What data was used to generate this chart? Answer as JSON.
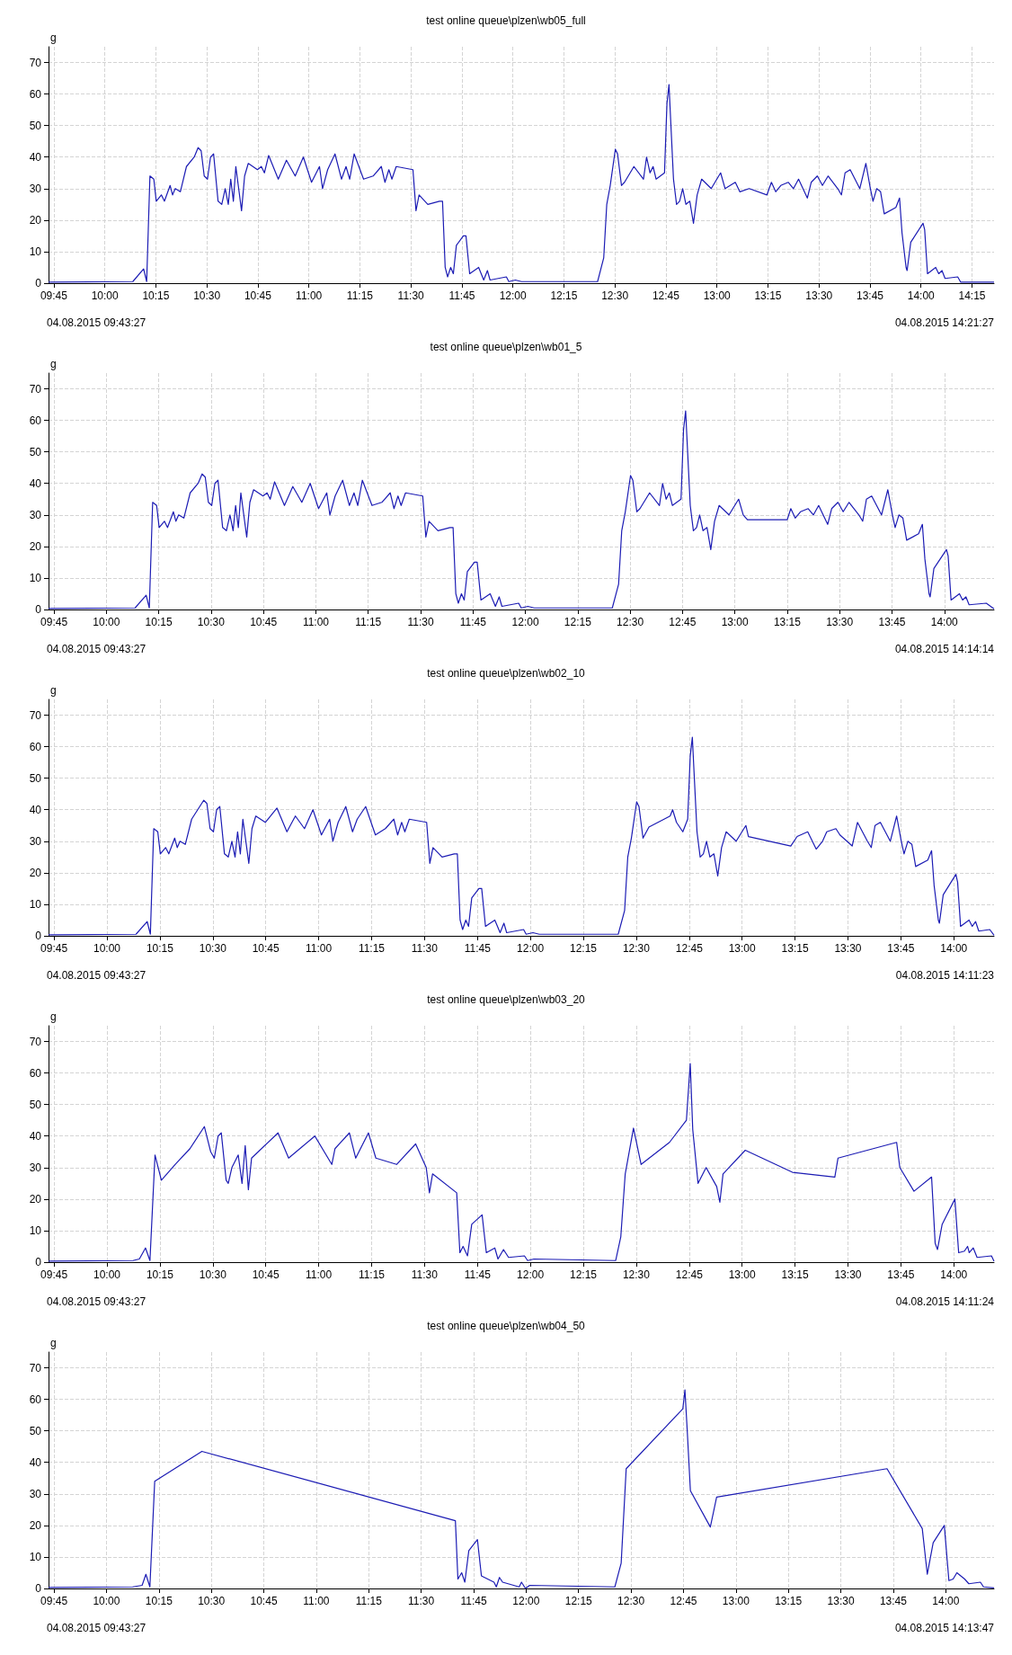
{
  "chart_data": [
    {
      "type": "line",
      "title": "test online queue\\plzen\\wb05_full",
      "ylabel": "g",
      "color": "#1c1cb4",
      "grid": true,
      "xlim": [
        9.724,
        14.358
      ],
      "ylim": [
        0,
        75
      ],
      "yticks": [
        0,
        10,
        20,
        30,
        40,
        50,
        60,
        70
      ],
      "xticks": [
        {
          "value": 9.75,
          "label": "09:45"
        },
        {
          "value": 10,
          "label": "10:00"
        },
        {
          "value": 10.25,
          "label": "10:15"
        },
        {
          "value": 10.5,
          "label": "10:30"
        },
        {
          "value": 10.75,
          "label": "10:45"
        },
        {
          "value": 11,
          "label": "11:00"
        },
        {
          "value": 11.25,
          "label": "11:15"
        },
        {
          "value": 11.5,
          "label": "11:30"
        },
        {
          "value": 11.75,
          "label": "11:45"
        },
        {
          "value": 12,
          "label": "12:00"
        },
        {
          "value": 12.25,
          "label": "12:15"
        },
        {
          "value": 12.5,
          "label": "12:30"
        },
        {
          "value": 12.75,
          "label": "12:45"
        },
        {
          "value": 13,
          "label": "13:00"
        },
        {
          "value": 13.25,
          "label": "13:15"
        },
        {
          "value": 13.5,
          "label": "13:30"
        },
        {
          "value": 13.75,
          "label": "13:45"
        },
        {
          "value": 14,
          "label": "14:00"
        },
        {
          "value": 14.25,
          "label": "14:15"
        }
      ],
      "annotations": [
        "04.08.2015 09:43:27",
        "04.08.2015 14:21:27"
      ],
      "x": [
        9.724,
        10.137,
        10.19,
        10.205,
        10.221,
        10.24,
        10.252,
        10.277,
        10.292,
        10.32,
        10.332,
        10.345,
        10.37,
        10.4,
        10.438,
        10.457,
        10.472,
        10.487,
        10.503,
        10.518,
        10.533,
        10.555,
        10.573,
        10.59,
        10.605,
        10.617,
        10.63,
        10.642,
        10.67,
        10.685,
        10.703,
        10.748,
        10.767,
        10.782,
        10.803,
        10.85,
        10.89,
        10.933,
        10.973,
        11.013,
        11.052,
        11.067,
        11.092,
        11.128,
        11.16,
        11.182,
        11.2,
        11.222,
        11.268,
        11.315,
        11.355,
        11.373,
        11.392,
        11.407,
        11.428,
        11.51,
        11.525,
        11.54,
        11.583,
        11.64,
        11.655,
        11.668,
        11.68,
        11.695,
        11.708,
        11.723,
        11.757,
        11.77,
        11.788,
        11.832,
        11.857,
        11.875,
        11.888,
        11.968,
        11.98,
        12.012,
        12.042,
        12.415,
        12.445,
        12.46,
        12.477,
        12.502,
        12.513,
        12.532,
        12.547,
        12.593,
        12.64,
        12.655,
        12.672,
        12.687,
        12.702,
        12.743,
        12.755,
        12.765,
        12.773,
        12.787,
        12.802,
        12.817,
        12.832,
        12.848,
        12.867,
        12.885,
        12.903,
        12.925,
        12.972,
        13.018,
        13.04,
        13.09,
        13.112,
        13.158,
        13.245,
        13.267,
        13.288,
        13.313,
        13.35,
        13.375,
        13.4,
        13.443,
        13.462,
        13.492,
        13.517,
        13.545,
        13.592,
        13.61,
        13.628,
        13.653,
        13.7,
        13.73,
        13.752,
        13.765,
        13.783,
        13.802,
        13.82,
        13.877,
        13.895,
        13.907,
        13.927,
        13.932,
        13.95,
        14.01,
        14.018,
        14.032,
        14.072,
        14.087,
        14.103,
        14.118,
        14.18,
        14.195,
        14.358
      ],
      "values": [
        0.3,
        0.5,
        4.5,
        0.5,
        34,
        33,
        26,
        28,
        26,
        31,
        28,
        30,
        29,
        37,
        40,
        43,
        42,
        34,
        33,
        40,
        41,
        26,
        25,
        30,
        25,
        33,
        26,
        37,
        23,
        34,
        38,
        36,
        37,
        35,
        40.5,
        33,
        39,
        34,
        40,
        32,
        37,
        30,
        36,
        41,
        33,
        37,
        33,
        41,
        33,
        34,
        37,
        32,
        36,
        33,
        37,
        36,
        23,
        28,
        25,
        26,
        26,
        5,
        2,
        5,
        3,
        12,
        15,
        15,
        3,
        5,
        1,
        4,
        1,
        2,
        0.5,
        1,
        0.5,
        0.5,
        8,
        25,
        31,
        42.5,
        41,
        31,
        32,
        37,
        33,
        40,
        35,
        37,
        33,
        35,
        57,
        63,
        52,
        33,
        25,
        26,
        30,
        25,
        26,
        19,
        28,
        33,
        30,
        35,
        30,
        32,
        29,
        30,
        28,
        32,
        29,
        31,
        32,
        30,
        33,
        27,
        32,
        34,
        31,
        34,
        30,
        28,
        35,
        36,
        30,
        38,
        30,
        26,
        30,
        29,
        22,
        24,
        27,
        16,
        5,
        4,
        13,
        19,
        17,
        3,
        5,
        3,
        4,
        1.5,
        2,
        0.3,
        0.3
      ]
    },
    {
      "type": "line",
      "title": "test online queue\\plzen\\wb01_5",
      "ylabel": "g",
      "color": "#1c1cb4",
      "grid": true,
      "xlim": [
        9.724,
        14.237
      ],
      "ylim": [
        0,
        75
      ],
      "yticks": [
        0,
        10,
        20,
        30,
        40,
        50,
        60,
        70
      ],
      "xticks": [
        {
          "value": 9.75,
          "label": "09:45"
        },
        {
          "value": 10,
          "label": "10:00"
        },
        {
          "value": 10.25,
          "label": "10:15"
        },
        {
          "value": 10.5,
          "label": "10:30"
        },
        {
          "value": 10.75,
          "label": "10:45"
        },
        {
          "value": 11,
          "label": "11:00"
        },
        {
          "value": 11.25,
          "label": "11:15"
        },
        {
          "value": 11.5,
          "label": "11:30"
        },
        {
          "value": 11.75,
          "label": "11:45"
        },
        {
          "value": 12,
          "label": "12:00"
        },
        {
          "value": 12.25,
          "label": "12:15"
        },
        {
          "value": 12.5,
          "label": "12:30"
        },
        {
          "value": 12.75,
          "label": "12:45"
        },
        {
          "value": 13,
          "label": "13:00"
        },
        {
          "value": 13.25,
          "label": "13:15"
        },
        {
          "value": 13.5,
          "label": "13:30"
        },
        {
          "value": 13.75,
          "label": "13:45"
        },
        {
          "value": 14,
          "label": "14:00"
        }
      ],
      "annotations": [
        "04.08.2015 09:43:27",
        "04.08.2015 14:14:14"
      ],
      "x": [
        9.724,
        10.137,
        10.19,
        10.205,
        10.221,
        10.24,
        10.252,
        10.277,
        10.292,
        10.32,
        10.332,
        10.345,
        10.37,
        10.4,
        10.438,
        10.457,
        10.472,
        10.487,
        10.503,
        10.518,
        10.533,
        10.555,
        10.573,
        10.59,
        10.605,
        10.617,
        10.63,
        10.642,
        10.67,
        10.685,
        10.703,
        10.748,
        10.767,
        10.782,
        10.803,
        10.85,
        10.89,
        10.933,
        10.973,
        11.013,
        11.052,
        11.067,
        11.092,
        11.128,
        11.16,
        11.182,
        11.2,
        11.222,
        11.268,
        11.315,
        11.355,
        11.373,
        11.392,
        11.407,
        11.428,
        11.51,
        11.525,
        11.54,
        11.583,
        11.64,
        11.655,
        11.668,
        11.68,
        11.695,
        11.708,
        11.723,
        11.757,
        11.77,
        11.788,
        11.832,
        11.857,
        11.875,
        11.888,
        11.968,
        11.98,
        12.012,
        12.042,
        12.415,
        12.445,
        12.46,
        12.477,
        12.502,
        12.513,
        12.532,
        12.547,
        12.593,
        12.64,
        12.655,
        12.672,
        12.687,
        12.702,
        12.743,
        12.755,
        12.765,
        12.773,
        12.787,
        12.802,
        12.817,
        12.832,
        12.848,
        12.867,
        12.885,
        12.903,
        12.925,
        12.972,
        13.018,
        13.04,
        13.06,
        13.25,
        13.267,
        13.288,
        13.313,
        13.35,
        13.375,
        13.4,
        13.443,
        13.462,
        13.492,
        13.517,
        13.545,
        13.592,
        13.61,
        13.628,
        13.653,
        13.7,
        13.73,
        13.752,
        13.765,
        13.783,
        13.802,
        13.82,
        13.877,
        13.895,
        13.907,
        13.927,
        13.932,
        13.95,
        14.01,
        14.018,
        14.032,
        14.072,
        14.087,
        14.103,
        14.118,
        14.2,
        14.237
      ],
      "values": [
        0.3,
        0.5,
        4.5,
        0.5,
        34,
        33,
        26,
        28,
        26,
        31,
        28,
        30,
        29,
        37,
        40,
        43,
        42,
        34,
        33,
        40,
        41,
        26,
        25,
        30,
        25,
        33,
        26,
        37,
        23,
        34,
        38,
        36,
        37,
        35,
        40.5,
        33,
        39,
        34,
        40,
        32,
        37,
        30,
        36,
        41,
        33,
        37,
        33,
        41,
        33,
        34,
        37,
        32,
        36,
        33,
        37,
        36,
        23,
        28,
        25,
        26,
        26,
        5,
        2,
        5,
        3,
        12,
        15,
        15,
        3,
        5,
        1,
        4,
        1,
        2,
        0.5,
        1,
        0.5,
        0.5,
        8,
        25,
        31,
        42.5,
        41,
        31,
        32,
        37,
        33,
        40,
        35,
        37,
        33,
        35,
        57,
        63,
        52,
        33,
        25,
        26,
        30,
        25,
        26,
        19,
        28,
        33,
        30,
        35,
        30,
        28.5,
        28.5,
        32,
        29,
        31,
        32,
        30,
        33,
        27,
        32,
        34,
        31,
        34,
        30,
        28,
        35,
        36,
        30,
        38,
        30,
        26,
        30,
        29,
        22,
        24,
        27,
        16,
        5,
        4,
        13,
        19,
        17,
        3,
        5,
        3,
        4,
        1.5,
        2,
        0.2
      ]
    },
    {
      "type": "line",
      "title": "test online queue\\plzen\\wb02_10",
      "ylabel": "g",
      "color": "#1c1cb4",
      "grid": true,
      "xlim": [
        9.724,
        14.19
      ],
      "ylim": [
        0,
        75
      ],
      "yticks": [
        0,
        10,
        20,
        30,
        40,
        50,
        60,
        70
      ],
      "xticks": [
        {
          "value": 9.75,
          "label": "09:45"
        },
        {
          "value": 10,
          "label": "10:00"
        },
        {
          "value": 10.25,
          "label": "10:15"
        },
        {
          "value": 10.5,
          "label": "10:30"
        },
        {
          "value": 10.75,
          "label": "10:45"
        },
        {
          "value": 11,
          "label": "11:00"
        },
        {
          "value": 11.25,
          "label": "11:15"
        },
        {
          "value": 11.5,
          "label": "11:30"
        },
        {
          "value": 11.75,
          "label": "11:45"
        },
        {
          "value": 12,
          "label": "12:00"
        },
        {
          "value": 12.25,
          "label": "12:15"
        },
        {
          "value": 12.5,
          "label": "12:30"
        },
        {
          "value": 12.75,
          "label": "12:45"
        },
        {
          "value": 13,
          "label": "13:00"
        },
        {
          "value": 13.25,
          "label": "13:15"
        },
        {
          "value": 13.5,
          "label": "13:30"
        },
        {
          "value": 13.75,
          "label": "13:45"
        },
        {
          "value": 14,
          "label": "14:00"
        }
      ],
      "annotations": [
        "04.08.2015 09:43:27",
        "04.08.2015 14:11:23"
      ],
      "x": [
        9.724,
        10.137,
        10.19,
        10.205,
        10.221,
        10.24,
        10.252,
        10.277,
        10.292,
        10.32,
        10.332,
        10.345,
        10.37,
        10.4,
        10.457,
        10.472,
        10.487,
        10.503,
        10.518,
        10.533,
        10.555,
        10.573,
        10.59,
        10.605,
        10.617,
        10.63,
        10.642,
        10.67,
        10.685,
        10.703,
        10.748,
        10.803,
        10.85,
        10.89,
        10.933,
        10.973,
        11.013,
        11.052,
        11.067,
        11.092,
        11.128,
        11.16,
        11.182,
        11.222,
        11.268,
        11.315,
        11.355,
        11.373,
        11.392,
        11.407,
        11.428,
        11.51,
        11.525,
        11.54,
        11.583,
        11.64,
        11.655,
        11.668,
        11.68,
        11.695,
        11.708,
        11.723,
        11.757,
        11.77,
        11.788,
        11.832,
        11.857,
        11.875,
        11.888,
        11.968,
        11.98,
        12.012,
        12.042,
        12.415,
        12.445,
        12.46,
        12.477,
        12.502,
        12.513,
        12.532,
        12.56,
        12.66,
        12.672,
        12.69,
        12.72,
        12.743,
        12.755,
        12.765,
        12.773,
        12.787,
        12.802,
        12.817,
        12.832,
        12.848,
        12.867,
        12.885,
        12.903,
        12.925,
        12.972,
        13.018,
        13.03,
        13.23,
        13.26,
        13.31,
        13.35,
        13.38,
        13.4,
        13.443,
        13.462,
        13.52,
        13.545,
        13.592,
        13.61,
        13.628,
        13.653,
        13.7,
        13.73,
        13.752,
        13.765,
        13.783,
        13.802,
        13.82,
        13.877,
        13.895,
        13.907,
        13.927,
        13.932,
        13.95,
        14.01,
        14.018,
        14.032,
        14.072,
        14.087,
        14.103,
        14.118,
        14.17,
        14.19
      ],
      "values": [
        0.3,
        0.5,
        4.5,
        0.5,
        34,
        33,
        26,
        28,
        26,
        31,
        28,
        30,
        29,
        37,
        43,
        42,
        34,
        33,
        40,
        41,
        26,
        25,
        30,
        25,
        33,
        26,
        37,
        23,
        34,
        38,
        36,
        40.5,
        33,
        38,
        34,
        40,
        32,
        37,
        30,
        36,
        41,
        33,
        37,
        41,
        32,
        34,
        37,
        32,
        36,
        33,
        37,
        36,
        23,
        28,
        25,
        26,
        26,
        5,
        2,
        5,
        3,
        12,
        15,
        15,
        3,
        5,
        1,
        4,
        1,
        2,
        0.5,
        1,
        0.5,
        0.5,
        8,
        25,
        31,
        42.5,
        41,
        31,
        34.5,
        38,
        40,
        36,
        33,
        37,
        57,
        63,
        52,
        33,
        25,
        26,
        30,
        25,
        26,
        19,
        28,
        33,
        30,
        35,
        31.5,
        28.5,
        31.5,
        33,
        27.5,
        30,
        33,
        34,
        32,
        28.5,
        36,
        30,
        28,
        35,
        36,
        30,
        38,
        30,
        26,
        30,
        29,
        22,
        24,
        27,
        16,
        5,
        4,
        13,
        19.5,
        17,
        3,
        5,
        3,
        4.5,
        1.5,
        2,
        0.2
      ]
    },
    {
      "type": "line",
      "title": "test online queue\\plzen\\wb03_20",
      "ylabel": "g",
      "color": "#1c1cb4",
      "grid": true,
      "xlim": [
        9.724,
        14.19
      ],
      "ylim": [
        0,
        75
      ],
      "yticks": [
        0,
        10,
        20,
        30,
        40,
        50,
        60,
        70
      ],
      "xticks": [
        {
          "value": 9.75,
          "label": "09:45"
        },
        {
          "value": 10,
          "label": "10:00"
        },
        {
          "value": 10.25,
          "label": "10:15"
        },
        {
          "value": 10.5,
          "label": "10:30"
        },
        {
          "value": 10.75,
          "label": "10:45"
        },
        {
          "value": 11,
          "label": "11:00"
        },
        {
          "value": 11.25,
          "label": "11:15"
        },
        {
          "value": 11.5,
          "label": "11:30"
        },
        {
          "value": 11.75,
          "label": "11:45"
        },
        {
          "value": 12,
          "label": "12:00"
        },
        {
          "value": 12.25,
          "label": "12:15"
        },
        {
          "value": 12.5,
          "label": "12:30"
        },
        {
          "value": 12.75,
          "label": "12:45"
        },
        {
          "value": 13,
          "label": "13:00"
        },
        {
          "value": 13.25,
          "label": "13:15"
        },
        {
          "value": 13.5,
          "label": "13:30"
        },
        {
          "value": 13.75,
          "label": "13:45"
        },
        {
          "value": 14,
          "label": "14:00"
        }
      ],
      "annotations": [
        "04.08.2015 09:43:27",
        "04.08.2015 14:11:24"
      ],
      "x": [
        9.724,
        10.123,
        10.153,
        10.182,
        10.203,
        10.227,
        10.257,
        10.322,
        10.392,
        10.46,
        10.49,
        10.507,
        10.525,
        10.54,
        10.563,
        10.573,
        10.59,
        10.62,
        10.638,
        10.653,
        10.668,
        10.683,
        10.808,
        10.858,
        10.982,
        11.062,
        11.077,
        11.145,
        11.175,
        11.235,
        11.27,
        11.368,
        11.458,
        11.508,
        11.523,
        11.538,
        11.652,
        11.667,
        11.682,
        11.703,
        11.723,
        11.772,
        11.792,
        11.832,
        11.847,
        11.873,
        11.897,
        11.972,
        11.987,
        12.017,
        12.403,
        12.427,
        12.448,
        12.487,
        12.523,
        12.657,
        12.737,
        12.755,
        12.767,
        12.792,
        12.83,
        12.88,
        12.895,
        12.91,
        13.015,
        13.238,
        13.438,
        13.453,
        13.73,
        13.745,
        13.812,
        13.895,
        13.912,
        13.923,
        13.945,
        14.005,
        14.023,
        14.05,
        14.065,
        14.073,
        14.092,
        14.11,
        14.178,
        14.19
      ],
      "values": [
        0.3,
        0.5,
        1,
        4.5,
        0.5,
        34,
        26,
        31,
        36,
        43,
        35,
        33,
        40,
        41,
        26,
        25,
        30,
        34,
        25,
        37,
        23,
        33,
        41,
        33,
        40,
        31,
        36,
        41,
        33,
        41,
        33,
        31,
        37.5,
        30,
        22,
        28,
        22,
        3,
        5,
        2,
        12,
        15,
        3,
        4.5,
        1,
        4,
        1.5,
        2,
        0.5,
        1,
        0.5,
        8,
        28,
        42.5,
        31,
        38,
        45,
        63,
        42,
        25,
        30,
        24,
        19,
        28,
        35.5,
        28.5,
        27,
        33,
        38,
        30,
        22.5,
        27,
        6,
        4,
        12,
        20,
        3,
        3.5,
        5,
        3,
        4.5,
        1.5,
        2,
        0.3
      ]
    },
    {
      "type": "line",
      "title": "test online queue\\plzen\\wb04_50",
      "ylabel": "g",
      "color": "#1c1cb4",
      "grid": true,
      "xlim": [
        9.724,
        14.23
      ],
      "ylim": [
        0,
        75
      ],
      "yticks": [
        0,
        10,
        20,
        30,
        40,
        50,
        60,
        70
      ],
      "xticks": [
        {
          "value": 9.75,
          "label": "09:45"
        },
        {
          "value": 10,
          "label": "10:00"
        },
        {
          "value": 10.25,
          "label": "10:15"
        },
        {
          "value": 10.5,
          "label": "10:30"
        },
        {
          "value": 10.75,
          "label": "10:45"
        },
        {
          "value": 11,
          "label": "11:00"
        },
        {
          "value": 11.25,
          "label": "11:15"
        },
        {
          "value": 11.5,
          "label": "11:30"
        },
        {
          "value": 11.75,
          "label": "11:45"
        },
        {
          "value": 12,
          "label": "12:00"
        },
        {
          "value": 12.25,
          "label": "12:15"
        },
        {
          "value": 12.5,
          "label": "12:30"
        },
        {
          "value": 12.75,
          "label": "12:45"
        },
        {
          "value": 13,
          "label": "13:00"
        },
        {
          "value": 13.25,
          "label": "13:15"
        },
        {
          "value": 13.5,
          "label": "13:30"
        },
        {
          "value": 13.75,
          "label": "13:45"
        },
        {
          "value": 14,
          "label": "14:00"
        }
      ],
      "annotations": [
        "04.08.2015 09:43:27",
        "04.08.2015 14:13:47"
      ],
      "x": [
        9.724,
        10.125,
        10.17,
        10.188,
        10.207,
        10.23,
        10.455,
        11.663,
        11.675,
        11.693,
        11.708,
        11.727,
        11.768,
        11.787,
        11.847,
        11.858,
        11.873,
        11.888,
        11.967,
        11.978,
        11.997,
        12.017,
        12.423,
        12.453,
        12.477,
        12.747,
        12.757,
        12.768,
        12.783,
        12.878,
        12.908,
        13.72,
        13.888,
        13.912,
        13.94,
        13.993,
        14.015,
        14.035,
        14.053,
        14.09,
        14.11,
        14.165,
        14.18,
        14.23
      ],
      "values": [
        0.3,
        0.5,
        1,
        4.5,
        0.5,
        34,
        43.5,
        21.5,
        3,
        5,
        2,
        12,
        15.5,
        4,
        2,
        0.5,
        3.5,
        2,
        0.5,
        2,
        0,
        1,
        0.5,
        8,
        38,
        57,
        63,
        50,
        31,
        19.5,
        29,
        38,
        19,
        4.5,
        14.5,
        20,
        2.5,
        3,
        5,
        3,
        1.5,
        2,
        0.5,
        0.2
      ]
    }
  ]
}
